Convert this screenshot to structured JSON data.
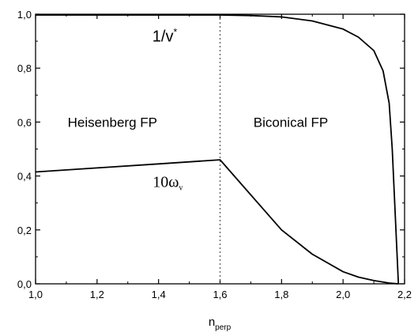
{
  "chart_data": {
    "type": "line",
    "title": "",
    "xlabel": "n",
    "xlabel_sub": "perp",
    "ylabel": "",
    "xlim": [
      1.0,
      2.2
    ],
    "ylim": [
      0.0,
      1.0
    ],
    "x_ticks": [
      "1,0",
      "1,2",
      "1,4",
      "1,6",
      "1,8",
      "2,0",
      "2,2"
    ],
    "x_tick_values": [
      1.0,
      1.2,
      1.4,
      1.6,
      1.8,
      2.0,
      2.2
    ],
    "y_ticks": [
      "0,0",
      "0,2",
      "0,4",
      "0,6",
      "0,8",
      "1,0"
    ],
    "y_tick_values": [
      0.0,
      0.2,
      0.4,
      0.6,
      0.8,
      1.0
    ],
    "grid": false,
    "vertical_marker": {
      "x": 1.6,
      "style": "dotted"
    },
    "region_labels": [
      {
        "text": "Heisenberg FP",
        "x": 1.25,
        "y": 0.6
      },
      {
        "text": "Biconical FP",
        "x": 1.83,
        "y": 0.6
      }
    ],
    "series": [
      {
        "label_main": "1/v",
        "label_sup": "*",
        "label_style": "sans",
        "label_at": {
          "x": 1.42,
          "y": 0.92
        },
        "x": [
          1.0,
          1.2,
          1.4,
          1.6,
          1.7,
          1.8,
          1.9,
          2.0,
          2.05,
          2.1,
          2.13,
          2.15,
          2.16,
          2.17,
          2.18
        ],
        "y": [
          0.997,
          0.997,
          0.997,
          0.997,
          0.995,
          0.99,
          0.975,
          0.945,
          0.915,
          0.865,
          0.79,
          0.67,
          0.5,
          0.25,
          0.0
        ]
      },
      {
        "label_main": "10ω",
        "label_sub": "v",
        "label_style": "serif",
        "label_at": {
          "x": 1.43,
          "y": 0.38
        },
        "x": [
          1.0,
          1.2,
          1.4,
          1.6,
          1.7,
          1.8,
          1.9,
          2.0,
          2.05,
          2.1,
          2.15,
          2.18
        ],
        "y": [
          0.415,
          0.43,
          0.445,
          0.46,
          0.33,
          0.2,
          0.11,
          0.045,
          0.025,
          0.012,
          0.003,
          0.0
        ]
      }
    ]
  }
}
